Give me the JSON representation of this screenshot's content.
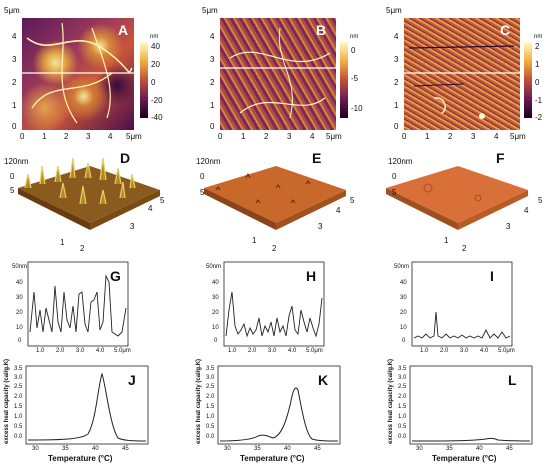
{
  "panels": {
    "A": "A",
    "B": "B",
    "C": "C",
    "D": "D",
    "E": "E",
    "F": "F",
    "G": "G",
    "H": "H",
    "I": "I",
    "J": "J",
    "K": "K",
    "L": "L"
  },
  "afm_units": {
    "scan": "5μm",
    "height": "nm"
  },
  "afm_axis_ticks": [
    "0",
    "1",
    "2",
    "3",
    "4",
    "5μm"
  ],
  "afm_y_ticks": [
    "4",
    "3",
    "2",
    "1",
    "0"
  ],
  "colorbars": {
    "A": [
      "nm",
      "40",
      "20",
      "0",
      "-20",
      "-40"
    ],
    "B": [
      "nm",
      "0",
      "-5",
      "-10"
    ],
    "C": [
      "nm",
      "2",
      "1",
      "0",
      "-1",
      "-2"
    ]
  },
  "three_d": {
    "z_label": "120nm",
    "axis_ticks": [
      "0",
      "1",
      "2",
      "3",
      "4",
      "5"
    ]
  },
  "profiles": {
    "G": {
      "y_ticks": [
        "40",
        "30",
        "20",
        "10",
        "0"
      ],
      "x_ticks": [
        "1.0",
        "2.0",
        "3.0",
        "4.0",
        "5.0μm"
      ],
      "unit": "50nm"
    },
    "H": {
      "y_ticks": [
        "40",
        "30",
        "20",
        "10",
        "0"
      ],
      "x_ticks": [
        "1.0",
        "2.0",
        "3.0",
        "4.0",
        "5.0μm"
      ],
      "unit": "50nm"
    },
    "I": {
      "y_ticks": [
        "40",
        "30",
        "20",
        "10",
        "0"
      ],
      "x_ticks": [
        "1.0",
        "2.0",
        "3.0",
        "4.0",
        "5.0μm"
      ],
      "unit": "50nm"
    }
  },
  "dsc": {
    "ylabel": "excess heat capacity (cal/g.K)",
    "xlabel": "Temperature (°C)",
    "y_ticks": [
      "3.5",
      "3.0",
      "2.5",
      "2.0",
      "1.5",
      "1.0",
      "0.5",
      "0.0"
    ],
    "x_ticks": [
      "30",
      "35",
      "40",
      "45"
    ]
  },
  "colors": {
    "afm_dark": "#3a0a3d",
    "afm_mid": "#c0392b",
    "afm_light": "#f7d65a",
    "surface": "#d2691e"
  }
}
